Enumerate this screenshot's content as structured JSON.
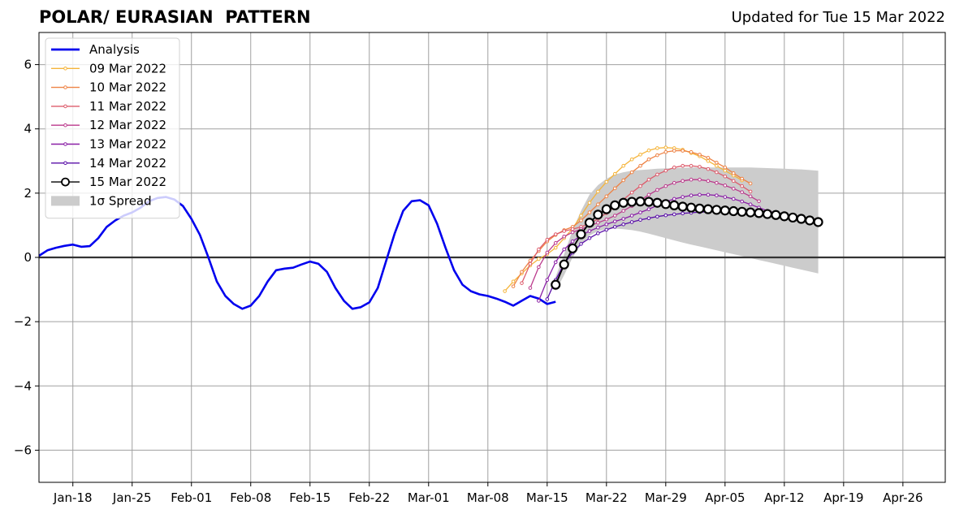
{
  "header": {
    "title": "POLAR/ EURASIAN  PATTERN",
    "updated": "Updated for Tue 15 Mar 2022"
  },
  "chart_data": {
    "type": "line",
    "title": "POLAR/ EURASIAN  PATTERN",
    "xlabel": "",
    "ylabel": "",
    "ylim": [
      -7,
      7
    ],
    "yticks": [
      -6,
      -4,
      -2,
      0,
      2,
      4,
      6
    ],
    "ytick_labels": [
      "−6",
      "−4",
      "−2",
      "0",
      "2",
      "4",
      "6"
    ],
    "xlim": [
      "2022-01-14",
      "2022-05-01"
    ],
    "xticks": [
      "2022-01-18",
      "2022-01-25",
      "2022-02-01",
      "2022-02-08",
      "2022-02-15",
      "2022-02-22",
      "2022-03-01",
      "2022-03-08",
      "2022-03-15",
      "2022-03-22",
      "2022-03-29",
      "2022-04-05",
      "2022-04-12",
      "2022-04-19",
      "2022-04-26"
    ],
    "xtick_labels": [
      "Jan-18",
      "Jan-25",
      "Feb-01",
      "Feb-08",
      "Feb-15",
      "Feb-22",
      "Mar-01",
      "Mar-08",
      "Mar-15",
      "Mar-22",
      "Mar-29",
      "Apr-05",
      "Apr-12",
      "Apr-19",
      "Apr-26"
    ],
    "grid": true,
    "legend_position": "top-left",
    "zero_line": 0,
    "analysis": {
      "name": "Analysis",
      "color": "#0000ee",
      "start": "2022-01-14",
      "values": [
        0.05,
        0.22,
        0.3,
        0.36,
        0.4,
        0.33,
        0.35,
        0.6,
        0.95,
        1.15,
        1.3,
        1.4,
        1.55,
        1.75,
        1.85,
        1.88,
        1.8,
        1.6,
        1.2,
        0.7,
        0.0,
        -0.75,
        -1.2,
        -1.45,
        -1.6,
        -1.5,
        -1.2,
        -0.75,
        -0.4,
        -0.35,
        -0.32,
        -0.22,
        -0.13,
        -0.2,
        -0.45,
        -0.95,
        -1.35,
        -1.6,
        -1.55,
        -1.4,
        -0.95,
        -0.1,
        0.75,
        1.45,
        1.75,
        1.78,
        1.62,
        1.05,
        0.3,
        -0.4,
        -0.85,
        -1.05,
        -1.15,
        -1.2,
        -1.28,
        -1.38,
        -1.5,
        -1.35,
        -1.2,
        -1.28,
        -1.45,
        -1.38
      ]
    },
    "forecasts": [
      {
        "name": "09 Mar 2022",
        "color": "#f5b43a",
        "start": "2022-03-10",
        "values": [
          -1.05,
          -0.75,
          -0.5,
          -0.25,
          -0.05,
          0.1,
          0.3,
          0.6,
          0.9,
          1.3,
          1.7,
          2.05,
          2.35,
          2.6,
          2.85,
          3.05,
          3.2,
          3.33,
          3.4,
          3.42,
          3.4,
          3.35,
          3.25,
          3.15,
          3.0,
          2.85,
          2.7,
          2.55,
          2.4
        ]
      },
      {
        "name": "10 Mar 2022",
        "color": "#ee8244",
        "start": "2022-03-11",
        "values": [
          -0.9,
          -0.45,
          -0.1,
          0.2,
          0.5,
          0.7,
          0.85,
          0.95,
          1.15,
          1.4,
          1.65,
          1.9,
          2.15,
          2.4,
          2.65,
          2.85,
          3.05,
          3.18,
          3.28,
          3.32,
          3.32,
          3.28,
          3.2,
          3.1,
          2.95,
          2.8,
          2.62,
          2.45,
          2.3
        ]
      },
      {
        "name": "11 Mar 2022",
        "color": "#dd5c6c",
        "start": "2022-03-12",
        "values": [
          -0.8,
          -0.2,
          0.25,
          0.55,
          0.72,
          0.82,
          0.88,
          0.95,
          1.05,
          1.2,
          1.38,
          1.58,
          1.8,
          2.02,
          2.22,
          2.42,
          2.58,
          2.7,
          2.8,
          2.85,
          2.85,
          2.82,
          2.75,
          2.65,
          2.52,
          2.38,
          2.22,
          2.05
        ]
      },
      {
        "name": "12 Mar 2022",
        "color": "#bb3a8c",
        "start": "2022-03-13",
        "values": [
          -0.95,
          -0.3,
          0.15,
          0.45,
          0.65,
          0.78,
          0.88,
          0.98,
          1.08,
          1.18,
          1.3,
          1.45,
          1.6,
          1.77,
          1.95,
          2.1,
          2.22,
          2.32,
          2.38,
          2.42,
          2.42,
          2.38,
          2.32,
          2.24,
          2.14,
          2.03,
          1.9,
          1.75
        ]
      },
      {
        "name": "13 Mar 2022",
        "color": "#8a1fa6",
        "start": "2022-03-14",
        "values": [
          -1.35,
          -0.7,
          -0.15,
          0.25,
          0.5,
          0.68,
          0.82,
          0.93,
          1.03,
          1.12,
          1.2,
          1.3,
          1.4,
          1.5,
          1.62,
          1.73,
          1.82,
          1.88,
          1.93,
          1.95,
          1.95,
          1.93,
          1.88,
          1.82,
          1.74,
          1.65,
          1.55,
          1.45,
          1.38
        ]
      },
      {
        "name": "14 Mar 2022",
        "color": "#5a0fa8",
        "start": "2022-03-15",
        "values": [
          -1.3,
          -0.7,
          -0.2,
          0.15,
          0.42,
          0.6,
          0.75,
          0.86,
          0.95,
          1.03,
          1.1,
          1.17,
          1.22,
          1.27,
          1.31,
          1.34,
          1.37,
          1.39,
          1.41,
          1.42,
          1.43,
          1.43,
          1.43,
          1.42,
          1.4,
          1.37,
          1.33,
          1.28
        ]
      },
      {
        "name": "15 Mar 2022",
        "color": "#000000",
        "start": "2022-03-16",
        "values": [
          -0.85,
          -0.22,
          0.28,
          0.72,
          1.08,
          1.33,
          1.5,
          1.62,
          1.7,
          1.73,
          1.74,
          1.73,
          1.7,
          1.66,
          1.62,
          1.58,
          1.55,
          1.52,
          1.5,
          1.48,
          1.46,
          1.44,
          1.42,
          1.4,
          1.38,
          1.35,
          1.32,
          1.28,
          1.24,
          1.2,
          1.15,
          1.1
        ]
      }
    ],
    "spread": {
      "name": "1σ Spread",
      "color": "#cccccc",
      "start": "2022-03-16",
      "lower": [
        -1.05,
        -0.55,
        0.0,
        0.4,
        0.68,
        0.82,
        0.88,
        0.9,
        0.88,
        0.85,
        0.8,
        0.74,
        0.67,
        0.6,
        0.53,
        0.46,
        0.4,
        0.34,
        0.28,
        0.22,
        0.16,
        0.1,
        0.04,
        -0.02,
        -0.08,
        -0.14,
        -0.2,
        -0.26,
        -0.32,
        -0.38,
        -0.44,
        -0.5
      ],
      "upper": [
        -0.6,
        0.1,
        0.85,
        1.45,
        1.95,
        2.25,
        2.45,
        2.58,
        2.65,
        2.7,
        2.72,
        2.74,
        2.76,
        2.77,
        2.78,
        2.79,
        2.8,
        2.8,
        2.8,
        2.8,
        2.8,
        2.8,
        2.8,
        2.8,
        2.79,
        2.78,
        2.77,
        2.76,
        2.75,
        2.74,
        2.72,
        2.7
      ]
    }
  }
}
